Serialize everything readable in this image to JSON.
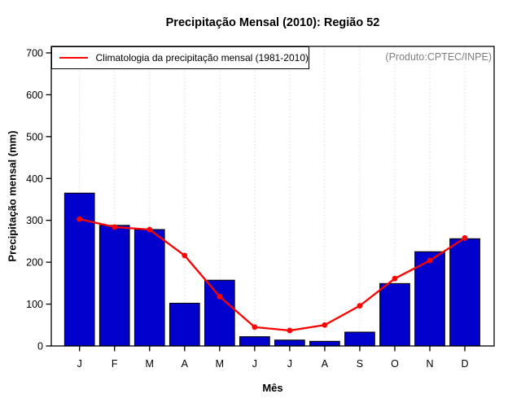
{
  "chart_data": {
    "type": "bar",
    "title": "Precipitação Mensal (2010): Região 52",
    "xlabel": "Mês",
    "ylabel": "Precipitação mensal (mm)",
    "categories": [
      "J",
      "F",
      "M",
      "A",
      "M",
      "J",
      "J",
      "A",
      "S",
      "O",
      "N",
      "D"
    ],
    "series": [
      {
        "name": "Precipitação mensal 2010",
        "type": "bar",
        "values": [
          365,
          288,
          278,
          102,
          157,
          22,
          14,
          11,
          33,
          149,
          225,
          256
        ]
      },
      {
        "name": "Climatologia da precipitação mensal (1981-2010)",
        "type": "line",
        "values": [
          303,
          284,
          278,
          216,
          118,
          45,
          37,
          50,
          96,
          161,
          204,
          258
        ]
      }
    ],
    "y_ticks": [
      0,
      100,
      200,
      300,
      400,
      500,
      600,
      700
    ],
    "ylim": [
      0,
      715
    ],
    "grid": "vertical-dotted",
    "legend_position": "top-left"
  },
  "legend": {
    "label": "Climatologia da precipitação mensal (1981-2010)"
  },
  "annotations": {
    "source_note": "(Produto:CPTEC/INPE)"
  },
  "colors": {
    "bar_fill": "#0000cd",
    "bar_border": "#000000",
    "line": "#ff0000",
    "grid": "#d9d9d9",
    "axis": "#000000",
    "note": "#808080"
  }
}
